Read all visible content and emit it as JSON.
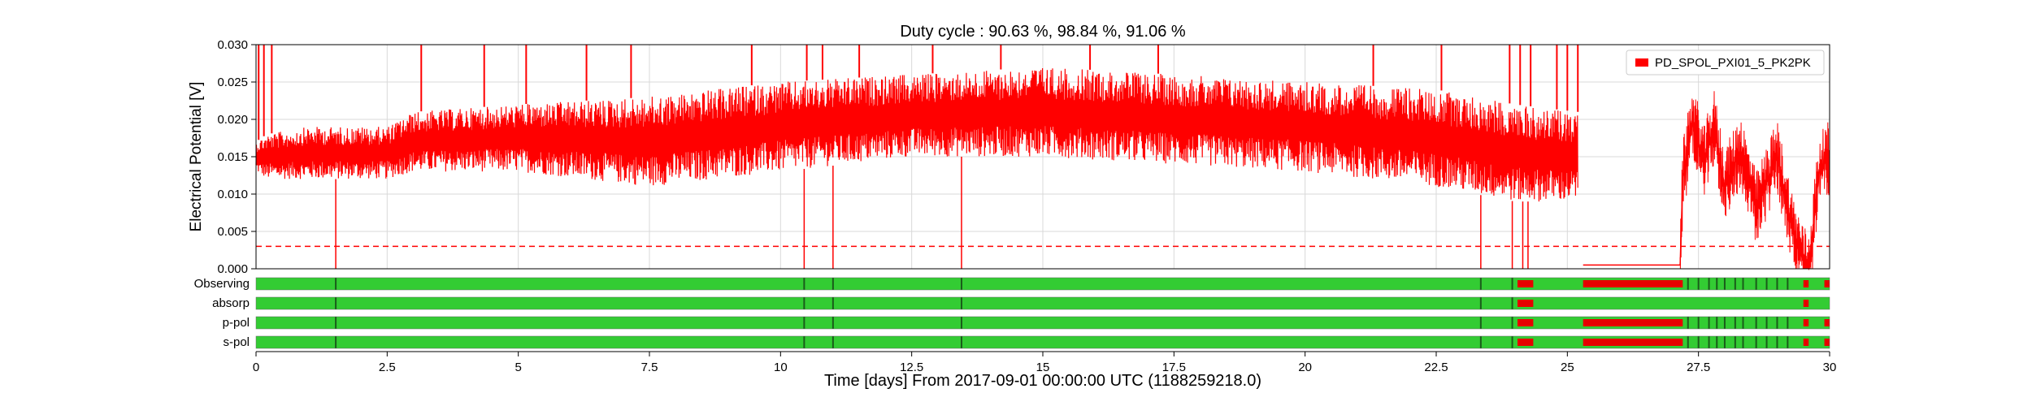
{
  "chart_data": {
    "type": "line",
    "title": "Duty cycle : 90.63 %, 98.84 %, 91.06 %",
    "xlabel": "Time [days] From 2017-09-01 00:00:00 UTC (1188259218.0)",
    "ylabel": "Electrical Potential [V]",
    "xlim": [
      0,
      30
    ],
    "ylim": [
      0,
      0.03
    ],
    "x_ticks": [
      0,
      2.5,
      5,
      7.5,
      10,
      12.5,
      15,
      17.5,
      20,
      22.5,
      25,
      27.5,
      30
    ],
    "x_tick_labels": [
      "0",
      "2.5",
      "5",
      "7.5",
      "10",
      "12.5",
      "15",
      "17.5",
      "20",
      "22.5",
      "25",
      "27.5",
      "30"
    ],
    "y_ticks": [
      0,
      0.005,
      0.01,
      0.015,
      0.02,
      0.025,
      0.03
    ],
    "y_tick_labels": [
      "0.000",
      "0.005",
      "0.010",
      "0.015",
      "0.020",
      "0.025",
      "0.030"
    ],
    "grid": true,
    "legend": {
      "position": "top-right",
      "entries": [
        "PD_SPOL_PXI01_5_PK2PK"
      ]
    },
    "threshold": 0.003,
    "series": [
      {
        "name": "PD_SPOL_PXI01_5_PK2PK",
        "color": "#ff0000",
        "envelope_x": [
          0,
          0.2,
          1,
          2.5,
          3,
          5,
          7.5,
          10,
          12.5,
          15,
          17.5,
          20,
          22.5,
          24,
          25.2
        ],
        "envelope_lo": [
          0.013,
          0.012,
          0.012,
          0.012,
          0.013,
          0.013,
          0.011,
          0.013,
          0.015,
          0.015,
          0.014,
          0.013,
          0.011,
          0.009,
          0.009
        ],
        "envelope_hi": [
          0.017,
          0.018,
          0.019,
          0.019,
          0.021,
          0.022,
          0.023,
          0.025,
          0.026,
          0.027,
          0.026,
          0.025,
          0.024,
          0.022,
          0.021
        ],
        "dropouts": [
          1.52,
          10.45,
          11.0,
          13.45,
          23.35,
          23.95,
          24.15,
          24.25
        ],
        "spike_x": [
          0.05,
          0.15,
          0.3,
          3.15,
          4.35,
          5.15,
          6.3,
          7.15,
          9.45,
          10.5,
          10.8,
          11.5,
          12.9,
          14.2,
          15.9,
          17.2,
          21.3,
          22.6,
          23.9,
          24.1,
          24.3,
          24.8,
          25.0,
          25.2
        ],
        "segment_late": {
          "x": [
            25.3,
            27.15,
            27.2,
            27.4,
            27.6,
            27.8,
            28.0,
            28.3,
            28.6,
            29.0,
            29.3,
            29.5,
            29.6,
            29.8,
            30.0
          ],
          "y": [
            0.0005,
            0.0005,
            0.012,
            0.02,
            0.014,
            0.019,
            0.011,
            0.016,
            0.008,
            0.015,
            0.005,
            0.001,
            0.0,
            0.013,
            0.015
          ]
        }
      }
    ],
    "segment_rows": [
      {
        "label": "Observing",
        "on_color": "#33cc33",
        "off_color": "#e60000",
        "off": [
          [
            24.05,
            24.35
          ],
          [
            25.3,
            27.2
          ],
          [
            29.5,
            29.6
          ],
          [
            29.9,
            30.0
          ]
        ],
        "marks": [
          1.52,
          10.45,
          11.0,
          13.45,
          23.35,
          23.95,
          27.3,
          27.5,
          27.7,
          27.85,
          28.0,
          28.2,
          28.35,
          28.6,
          28.8,
          29.0,
          29.2
        ]
      },
      {
        "label": "absorp",
        "on_color": "#33cc33",
        "off_color": "#e60000",
        "off": [
          [
            24.05,
            24.35
          ],
          [
            29.5,
            29.6
          ]
        ],
        "marks": [
          1.52,
          10.45,
          11.0,
          13.45,
          23.35,
          23.95
        ]
      },
      {
        "label": "p-pol",
        "on_color": "#33cc33",
        "off_color": "#e60000",
        "off": [
          [
            24.05,
            24.35
          ],
          [
            25.3,
            27.2
          ],
          [
            29.5,
            29.6
          ],
          [
            29.9,
            30.0
          ]
        ],
        "marks": [
          1.52,
          10.45,
          11.0,
          13.45,
          23.35,
          23.95,
          27.3,
          27.5,
          27.7,
          27.85,
          28.0,
          28.2,
          28.35,
          28.6,
          28.8,
          29.0,
          29.2
        ]
      },
      {
        "label": "s-pol",
        "on_color": "#33cc33",
        "off_color": "#e60000",
        "off": [
          [
            24.05,
            24.35
          ],
          [
            25.3,
            27.2
          ],
          [
            29.5,
            29.6
          ],
          [
            29.9,
            30.0
          ]
        ],
        "marks": [
          1.52,
          10.45,
          11.0,
          13.45,
          23.35,
          23.95,
          27.3,
          27.5,
          27.7,
          27.85,
          28.0,
          28.2,
          28.35,
          28.6,
          28.8,
          29.0,
          29.2
        ]
      }
    ]
  }
}
